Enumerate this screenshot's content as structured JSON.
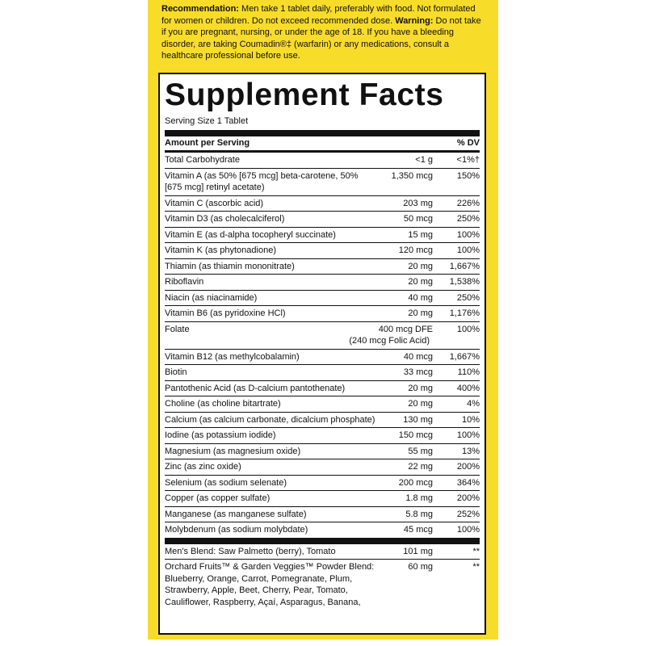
{
  "recommendation": {
    "label": "Recommendation:",
    "text": "Men take 1 tablet daily, preferably with food. Not formulated for women or children. Do not exceed recommended dose.",
    "warning_label": "Warning:",
    "warning_text": "Do not take if you are pregnant, nursing, or under the age of 18. If you have a bleeding disorder, are taking Coumadin®‡ (warfarin) or any medications, consult a healthcare professional before use."
  },
  "facts": {
    "title": "Supplement Facts",
    "serving_size": "Serving Size 1 Tablet",
    "header_amount": "Amount per Serving",
    "header_dv": "% DV",
    "rows": [
      {
        "name": "Total Carbohydrate",
        "amount": "<1 g",
        "dv": "<1%†"
      },
      {
        "name": "Vitamin A (as 50% [675 mcg] beta-carotene, 50% [675 mcg] retinyl acetate)",
        "amount": "1,350 mcg",
        "dv": "150%"
      },
      {
        "name": "Vitamin C (ascorbic acid)",
        "amount": "203 mg",
        "dv": "226%"
      },
      {
        "name": "Vitamin D3 (as cholecalciferol)",
        "amount": "50 mcg",
        "dv": "250%"
      },
      {
        "name": "Vitamin E (as d-alpha tocopheryl succinate)",
        "amount": "15 mg",
        "dv": "100%"
      },
      {
        "name": "Vitamin K (as phytonadione)",
        "amount": "120 mcg",
        "dv": "100%"
      },
      {
        "name": "Thiamin (as thiamin mononitrate)",
        "amount": "20 mg",
        "dv": "1,667%"
      },
      {
        "name": "Riboflavin",
        "amount": "20 mg",
        "dv": "1,538%"
      },
      {
        "name": "Niacin (as niacinamide)",
        "amount": "40 mg",
        "dv": "250%"
      },
      {
        "name": "Vitamin B6 (as pyridoxine HCl)",
        "amount": "20 mg",
        "dv": "1,176%"
      },
      {
        "name": "Folate",
        "amount": "400 mcg DFE",
        "dv": "100%",
        "note": "(240 mcg Folic Acid)"
      },
      {
        "name": "Vitamin B12 (as methylcobalamin)",
        "amount": "40 mcg",
        "dv": "1,667%"
      },
      {
        "name": "Biotin",
        "amount": "33 mcg",
        "dv": "110%"
      },
      {
        "name": "Pantothenic Acid (as D-calcium pantothenate)",
        "amount": "20 mg",
        "dv": "400%"
      },
      {
        "name": "Choline (as choline bitartrate)",
        "amount": "20 mg",
        "dv": "4%"
      },
      {
        "name": "Calcium (as calcium carbonate, dicalcium phosphate)",
        "amount": "130 mg",
        "dv": "10%"
      },
      {
        "name": "Iodine (as potassium iodide)",
        "amount": "150 mcg",
        "dv": "100%"
      },
      {
        "name": "Magnesium (as magnesium oxide)",
        "amount": "55 mg",
        "dv": "13%"
      },
      {
        "name": "Zinc (as zinc oxide)",
        "amount": "22 mg",
        "dv": "200%"
      },
      {
        "name": "Selenium (as sodium selenate)",
        "amount": "200 mcg",
        "dv": "364%"
      },
      {
        "name": "Copper (as copper sulfate)",
        "amount": "1.8 mg",
        "dv": "200%"
      },
      {
        "name": "Manganese (as manganese sulfate)",
        "amount": "5.8 mg",
        "dv": "252%"
      },
      {
        "name": "Molybdenum (as sodium molybdate)",
        "amount": "45 mcg",
        "dv": "100%"
      }
    ],
    "blends": [
      {
        "name": "Men's Blend: Saw Palmetto (berry), Tomato",
        "amount": "101 mg",
        "dv": "**"
      },
      {
        "name": "Orchard Fruits™ & Garden Veggies™ Powder Blend: Blueberry, Orange, Carrot, Pomegranate, Plum, Strawberry, Apple, Beet, Cherry, Pear, Tomato, Cauliflower, Raspberry, Açaí, Asparagus, Banana,",
        "amount": "60 mg",
        "dv": "**"
      }
    ]
  }
}
